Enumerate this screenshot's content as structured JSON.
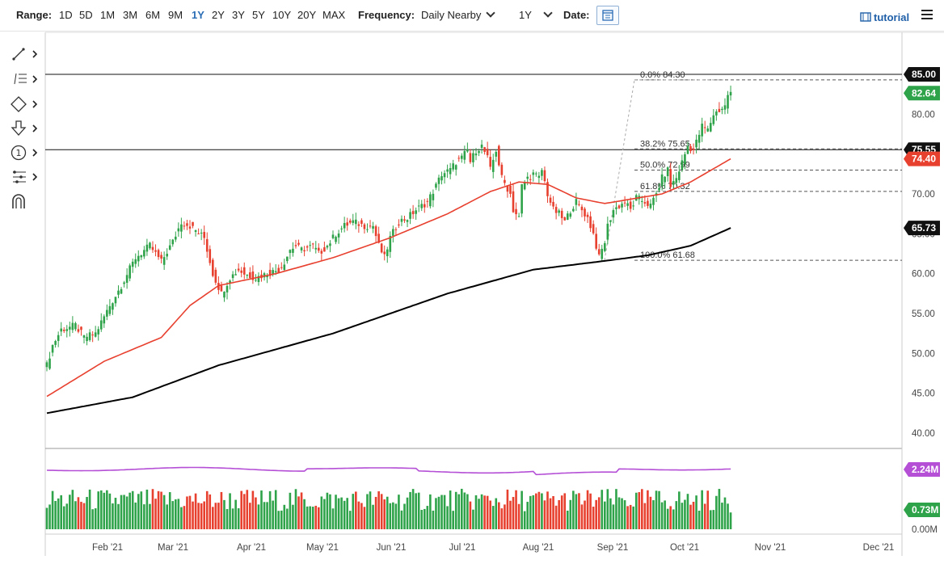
{
  "toolbar": {
    "range_label": "Range:",
    "ranges": [
      "1D",
      "5D",
      "1M",
      "3M",
      "6M",
      "9M",
      "1Y",
      "2Y",
      "3Y",
      "5Y",
      "10Y",
      "20Y",
      "MAX"
    ],
    "active_range": "1Y",
    "frequency_label": "Frequency:",
    "frequency_value": "Daily Nearby",
    "period_value": "1Y",
    "date_label": "Date:",
    "tutorial_label": "tutorial"
  },
  "sidebar_tools": [
    "line-tool-icon",
    "fib-tool-icon",
    "shape-tool-icon",
    "arrow-tool-icon",
    "number-tool-icon",
    "pattern-tool-icon",
    "magnet-icon"
  ],
  "colors": {
    "up": "#2fa34a",
    "down": "#e8402f",
    "sma50": "#e8402f",
    "sma200": "#000000",
    "volume_avg": "#b44fd6",
    "badge_green": "#2fa34a",
    "badge_red": "#e8402f",
    "badge_black": "#111111"
  },
  "chart_data": {
    "type": "candlestick",
    "y_axis": {
      "min": 40,
      "max": 85,
      "ticks": [
        "85.00",
        "80.00",
        "75.00",
        "70.00",
        "65.00",
        "60.00",
        "55.00",
        "50.00",
        "45.00",
        "40.00"
      ]
    },
    "x_axis": {
      "ticks": [
        "Feb '21",
        "Mar '21",
        "Apr '21",
        "May '21",
        "Jun '21",
        "Jul '21",
        "Aug '21",
        "Sep '21",
        "Oct '21",
        "Nov '21",
        "Dec '21"
      ]
    },
    "horizontal_lines": [
      85.0,
      75.55
    ],
    "fibonacci": [
      {
        "label": "0.0% 84.30",
        "value": 84.3
      },
      {
        "label": "38.2% 75.65",
        "value": 75.65
      },
      {
        "label": "50.0% 72.99",
        "value": 72.99
      },
      {
        "label": "61.8% 70.32",
        "value": 70.32
      },
      {
        "label": "100.0% 61.68",
        "value": 61.68
      }
    ],
    "price_badges": [
      {
        "text": "85.00",
        "value": 85.0,
        "color": "#111111"
      },
      {
        "text": "82.64",
        "value": 82.64,
        "color": "#2fa34a"
      },
      {
        "text": "75.55",
        "value": 75.55,
        "color": "#111111"
      },
      {
        "text": "74.40",
        "value": 74.4,
        "color": "#e8402f"
      },
      {
        "text": "65.73",
        "value": 65.73,
        "color": "#111111"
      }
    ],
    "close_path": [
      [
        0,
        48.5
      ],
      [
        2,
        51
      ],
      [
        5,
        53
      ],
      [
        10,
        53.5
      ],
      [
        13,
        52
      ],
      [
        17,
        52.5
      ],
      [
        22,
        56
      ],
      [
        26,
        58.5
      ],
      [
        31,
        62
      ],
      [
        36,
        63.5
      ],
      [
        40,
        61.5
      ],
      [
        44,
        64
      ],
      [
        47,
        66.5
      ],
      [
        50,
        66
      ],
      [
        55,
        64.5
      ],
      [
        58,
        60
      ],
      [
        61,
        57.5
      ],
      [
        64,
        59.5
      ],
      [
        67,
        60.5
      ],
      [
        69,
        60
      ],
      [
        73,
        59.5
      ],
      [
        77,
        60
      ],
      [
        81,
        60.5
      ],
      [
        83,
        61.5
      ],
      [
        85,
        63
      ],
      [
        87,
        63.5
      ],
      [
        89,
        63
      ],
      [
        93,
        63.5
      ],
      [
        95,
        62.5
      ],
      [
        98,
        63.5
      ],
      [
        101,
        65
      ],
      [
        104,
        66
      ],
      [
        107,
        66.5
      ],
      [
        111,
        66
      ],
      [
        114,
        66
      ],
      [
        116,
        63.5
      ],
      [
        118,
        62
      ],
      [
        120,
        64.5
      ],
      [
        123,
        66.5
      ],
      [
        126,
        67
      ],
      [
        129,
        68
      ],
      [
        131,
        68.5
      ],
      [
        133,
        69
      ],
      [
        136,
        71
      ],
      [
        138,
        72.5
      ],
      [
        141,
        73
      ],
      [
        143,
        74
      ],
      [
        145,
        74.5
      ],
      [
        147,
        75.5
      ],
      [
        148,
        74
      ],
      [
        150,
        75.5
      ],
      [
        152,
        76
      ],
      [
        154,
        74.5
      ],
      [
        155,
        73
      ],
      [
        157,
        75.5
      ],
      [
        159,
        72
      ],
      [
        162,
        70
      ],
      [
        163,
        68
      ],
      [
        165,
        67
      ],
      [
        166,
        71
      ],
      [
        168,
        72
      ],
      [
        170,
        72.5
      ],
      [
        172,
        72
      ],
      [
        173,
        73
      ],
      [
        175,
        70
      ],
      [
        177,
        68
      ],
      [
        179,
        67.5
      ],
      [
        181,
        66.5
      ],
      [
        183,
        68
      ],
      [
        185,
        69
      ],
      [
        187,
        68
      ],
      [
        189,
        67
      ],
      [
        191,
        65
      ],
      [
        192,
        63.5
      ],
      [
        193,
        62
      ],
      [
        195,
        64
      ],
      [
        196,
        66
      ],
      [
        198,
        68
      ],
      [
        200,
        68.5
      ],
      [
        202,
        69
      ],
      [
        204,
        68
      ],
      [
        206,
        69.5
      ],
      [
        209,
        69
      ],
      [
        211,
        68.5
      ],
      [
        213,
        70
      ],
      [
        215,
        72
      ],
      [
        217,
        73
      ],
      [
        218,
        71
      ],
      [
        220,
        72
      ],
      [
        222,
        74
      ],
      [
        224,
        76
      ],
      [
        226,
        75.5
      ],
      [
        228,
        77.5
      ],
      [
        229,
        78.5
      ],
      [
        231,
        78
      ],
      [
        233,
        80
      ],
      [
        235,
        80.5
      ],
      [
        237,
        81
      ],
      [
        238,
        82.5
      ],
      [
        239,
        82.64
      ]
    ],
    "sma50_path": [
      [
        0,
        44.6
      ],
      [
        20,
        49
      ],
      [
        40,
        52
      ],
      [
        50,
        56
      ],
      [
        60,
        58.5
      ],
      [
        80,
        60
      ],
      [
        100,
        62
      ],
      [
        120,
        64.5
      ],
      [
        140,
        67.5
      ],
      [
        155,
        70.3
      ],
      [
        165,
        71.5
      ],
      [
        175,
        71.2
      ],
      [
        185,
        69.5
      ],
      [
        195,
        68.8
      ],
      [
        205,
        69.4
      ],
      [
        215,
        70
      ],
      [
        225,
        71.5
      ],
      [
        239,
        74.4
      ]
    ],
    "sma200_path": [
      [
        0,
        42.5
      ],
      [
        30,
        44.5
      ],
      [
        60,
        48.5
      ],
      [
        100,
        52.5
      ],
      [
        140,
        57.5
      ],
      [
        170,
        60.5
      ],
      [
        195,
        61.6
      ],
      [
        210,
        62.3
      ],
      [
        225,
        63.5
      ],
      [
        239,
        65.73
      ]
    ],
    "volume_axis": {
      "labels": [
        "2.24M",
        "0.73M",
        "0.00M"
      ],
      "average_label": "2.24M",
      "last_label": "0.73M",
      "zero_label": "0.00M"
    }
  }
}
